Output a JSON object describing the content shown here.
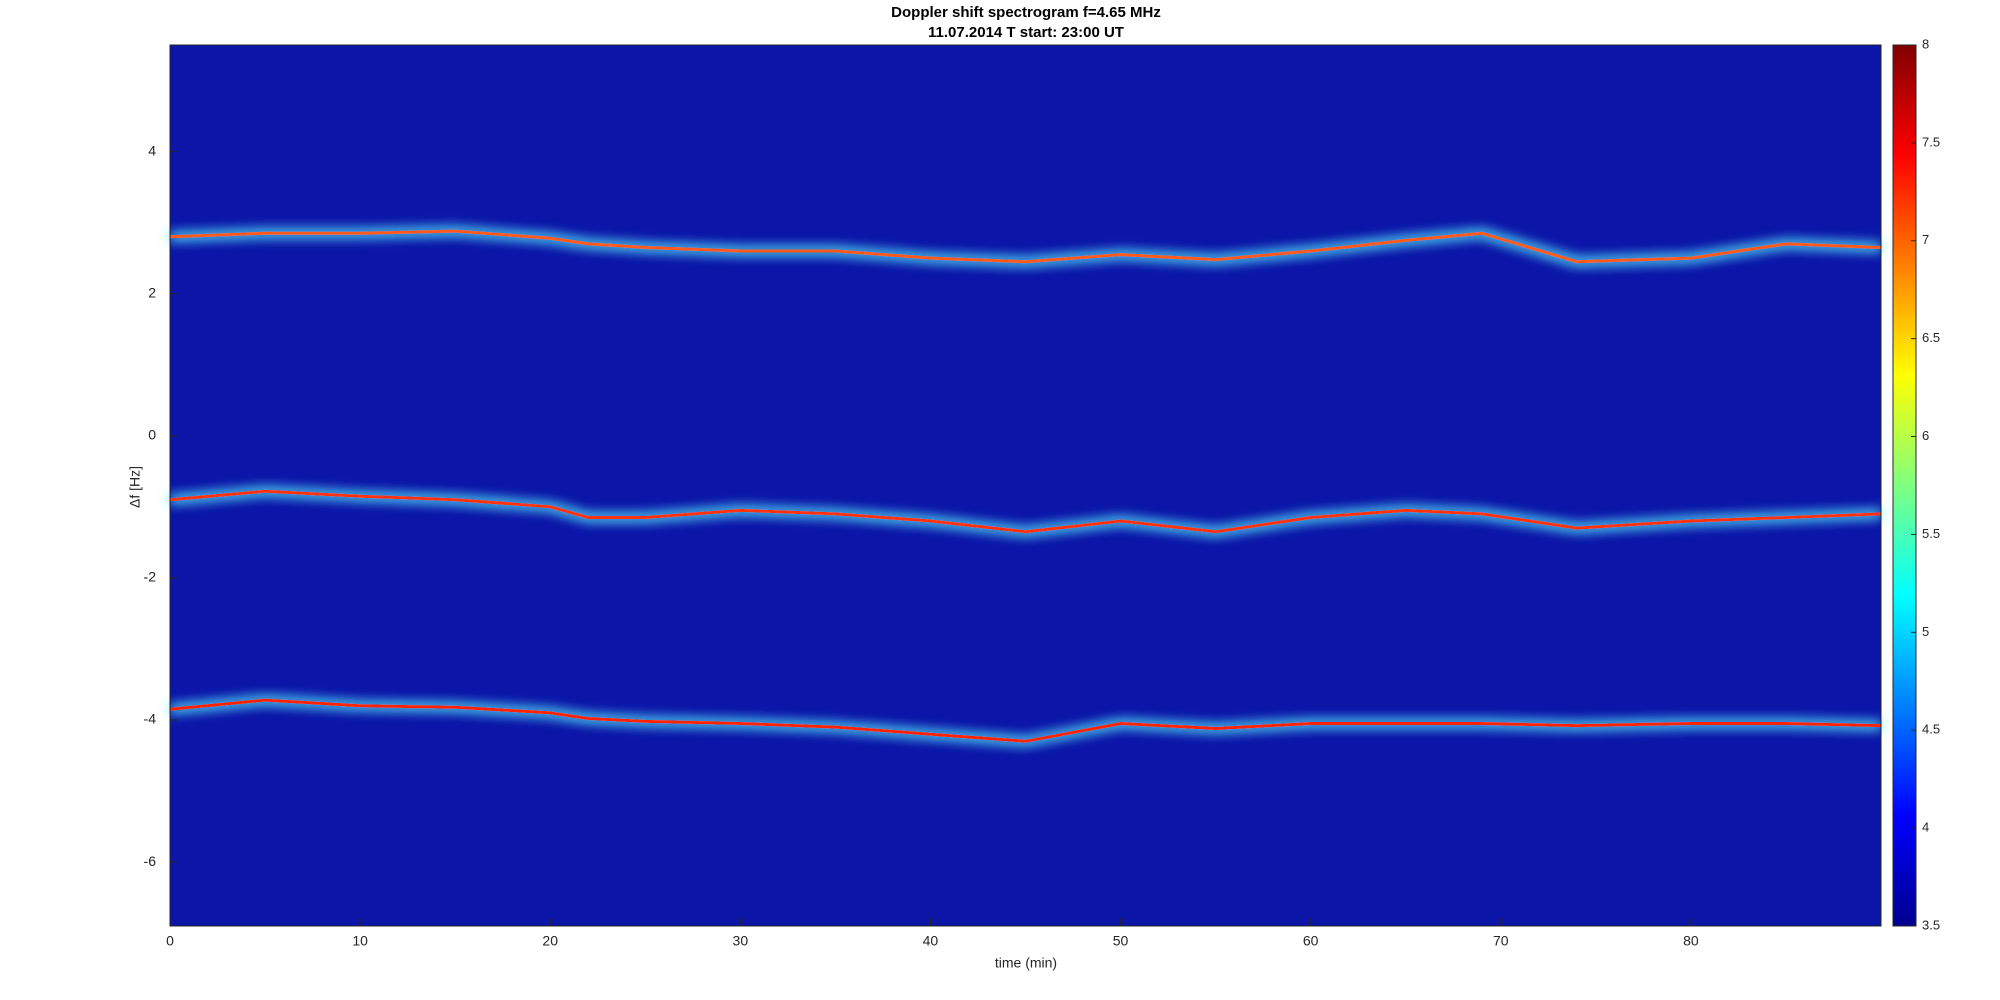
{
  "chart_data": {
    "type": "spectrogram",
    "title": "Doppler shift spectrogram f=4.65 MHz",
    "subtitle": "11.07.2014   T start: 23:00 UT",
    "xlabel": "time (min)",
    "ylabel": "Δf [Hz]",
    "background": "#0b16a8",
    "xlim": [
      0,
      90
    ],
    "ylim": [
      -6.9,
      5.5
    ],
    "xticks": [
      0,
      10,
      20,
      30,
      40,
      50,
      60,
      70,
      80
    ],
    "yticks": [
      -6,
      -4,
      -2,
      0,
      2,
      4
    ],
    "x": [
      0,
      5,
      10,
      15,
      20,
      22,
      25,
      30,
      35,
      40,
      45,
      50,
      55,
      60,
      65,
      69,
      74,
      80,
      85,
      90
    ],
    "series": [
      {
        "color": "#ff5a1e",
        "values": [
          2.8,
          2.85,
          2.85,
          2.88,
          2.78,
          2.7,
          2.65,
          2.6,
          2.6,
          2.5,
          2.45,
          2.55,
          2.48,
          2.6,
          2.75,
          2.85,
          2.45,
          2.5,
          2.7,
          2.65
        ]
      },
      {
        "color": "#ff3010",
        "values": [
          -0.9,
          -0.78,
          -0.85,
          -0.9,
          -1.0,
          -1.15,
          -1.15,
          -1.05,
          -1.1,
          -1.2,
          -1.35,
          -1.2,
          -1.35,
          -1.15,
          -1.05,
          -1.1,
          -1.3,
          -1.2,
          -1.15,
          -1.1
        ]
      },
      {
        "color": "#ff2000",
        "values": [
          -3.85,
          -3.72,
          -3.8,
          -3.82,
          -3.9,
          -3.98,
          -4.02,
          -4.05,
          -4.1,
          -4.2,
          -4.3,
          -4.05,
          -4.12,
          -4.05,
          -4.05,
          -4.05,
          -4.08,
          -4.05,
          -4.05,
          -4.08
        ]
      }
    ],
    "colorbar": {
      "lim": [
        3.5,
        8
      ],
      "ticks": [
        3.5,
        4,
        4.5,
        5,
        5.5,
        6,
        6.5,
        7,
        7.5,
        8
      ]
    }
  }
}
